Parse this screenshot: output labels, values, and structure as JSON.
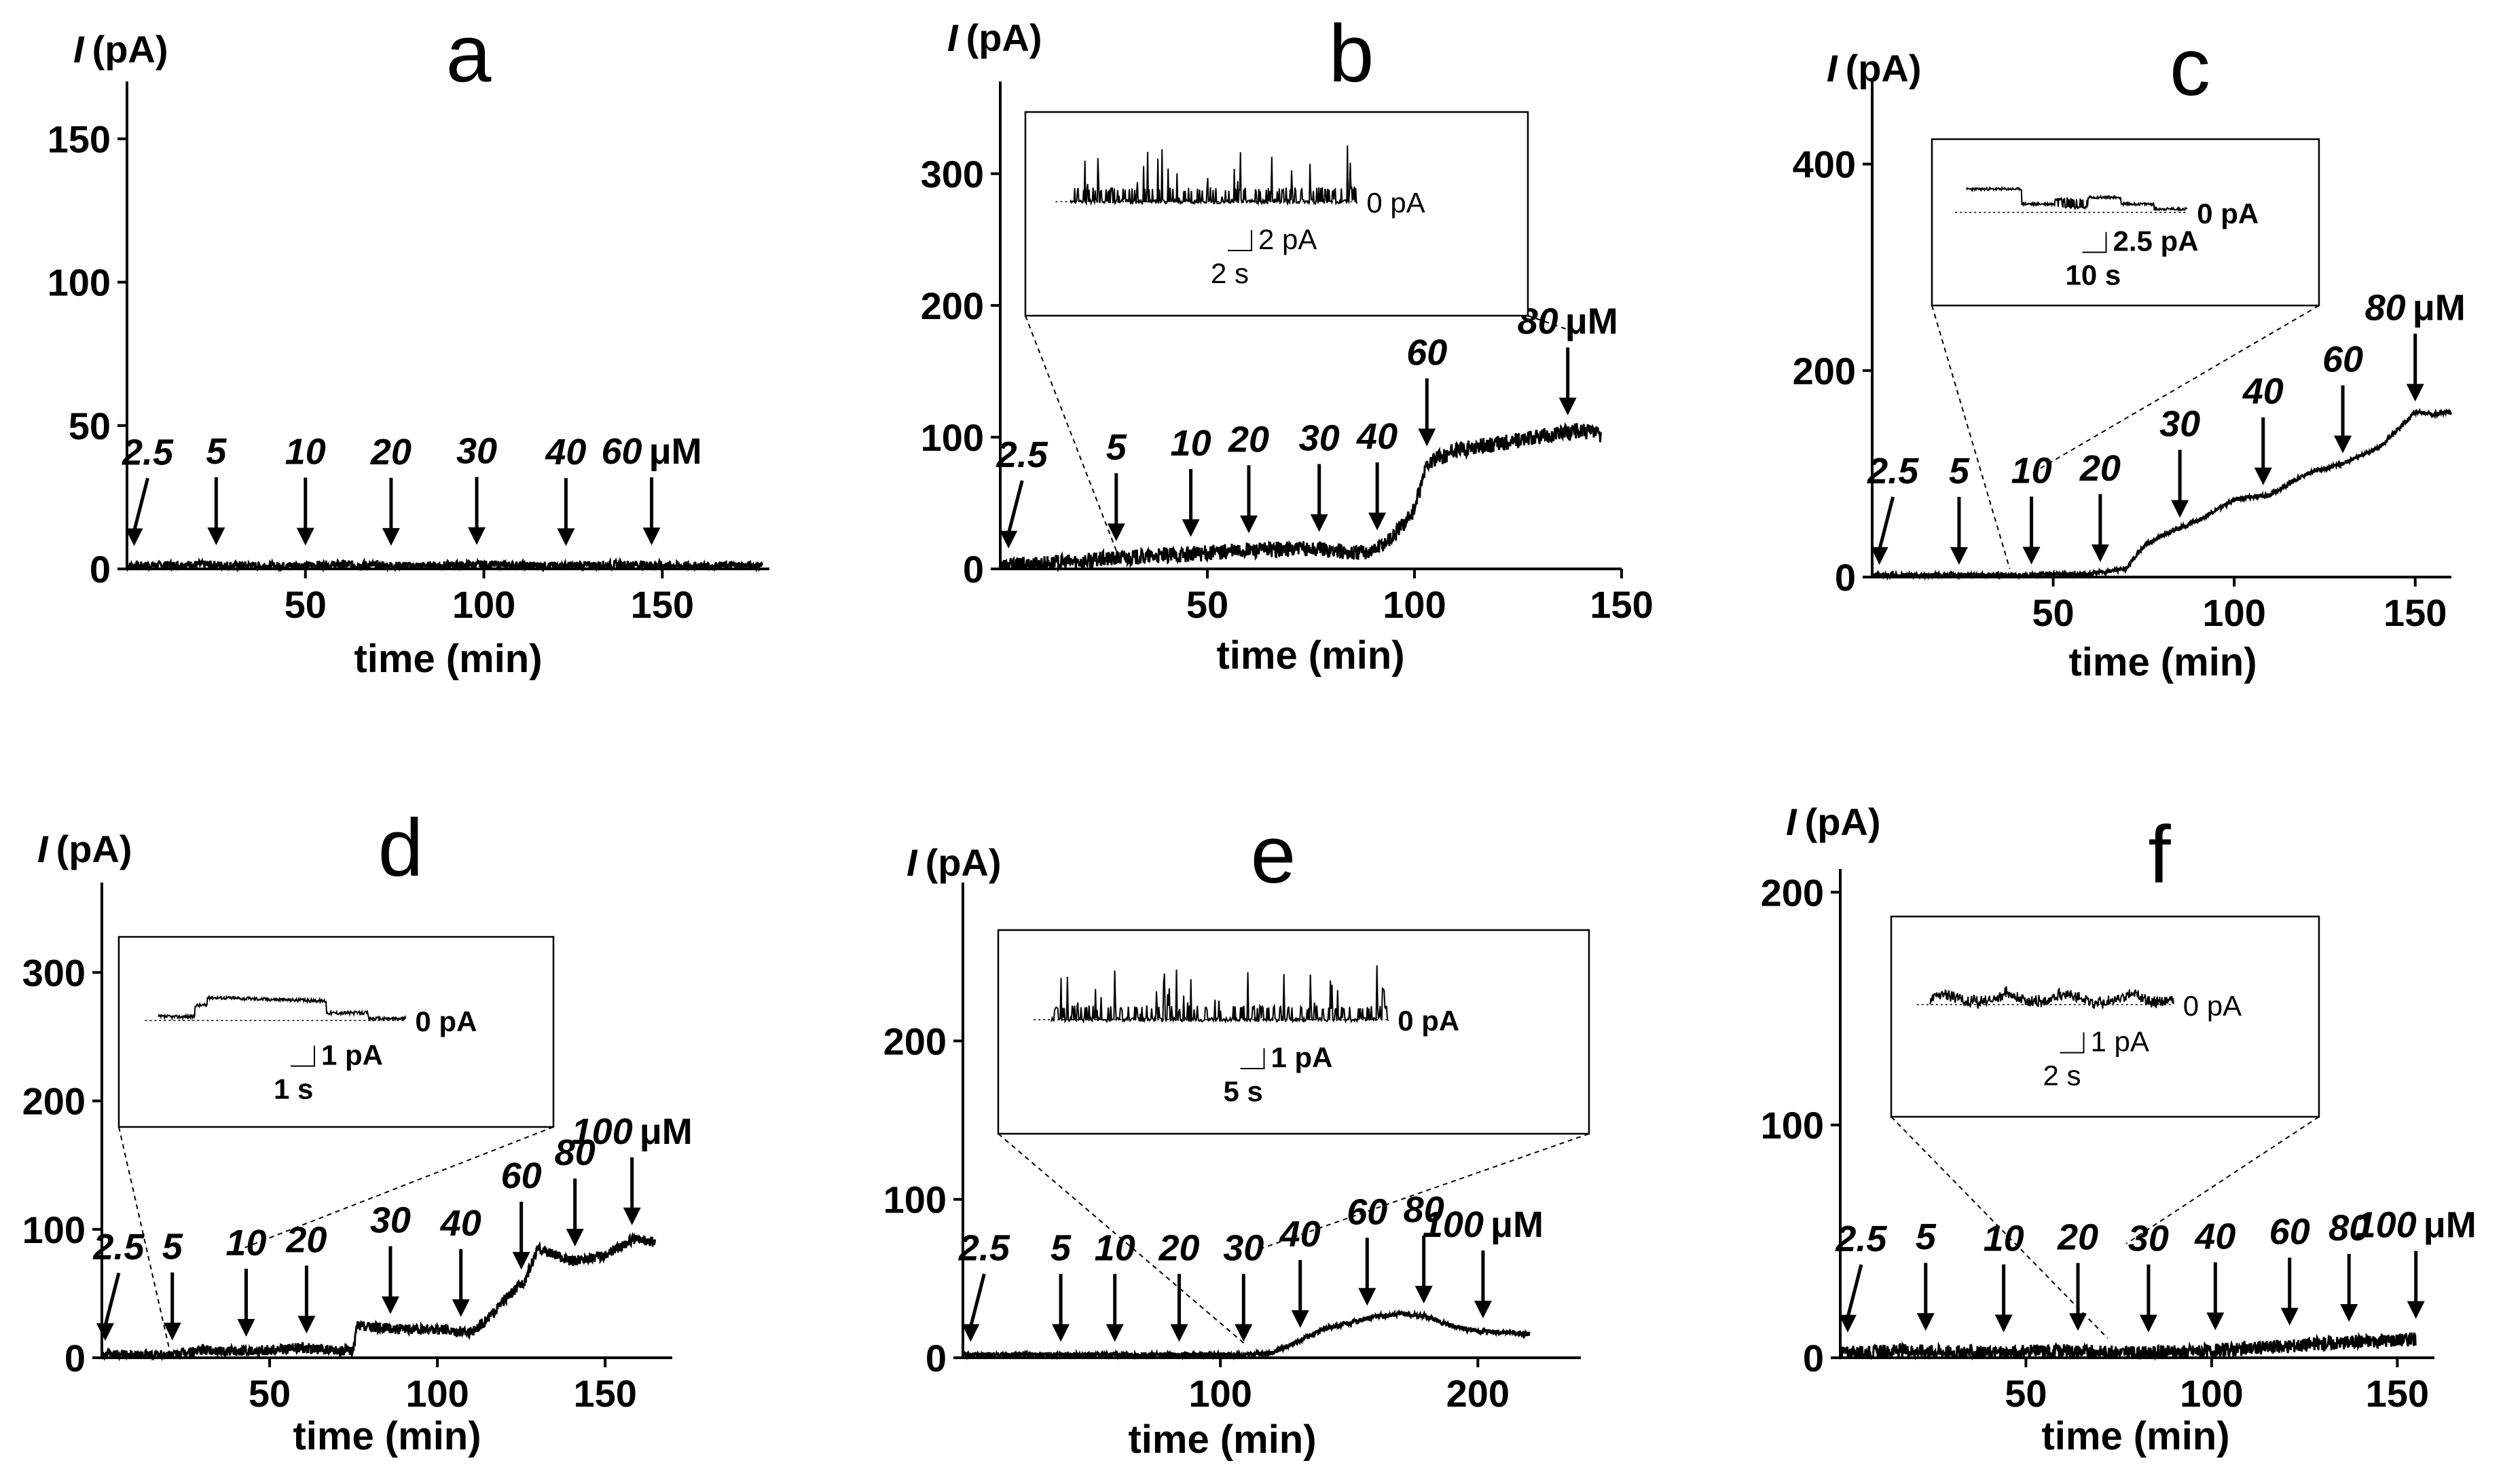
{
  "figure": {
    "description_free": true
  },
  "chart_data": [
    {
      "type": "line",
      "panel": "a",
      "ylabel_symbol": "I",
      "ylabel_unit": "(pA)",
      "xlabel": "time (min)",
      "xlim": [
        0,
        180
      ],
      "ylim": [
        0,
        170
      ],
      "xticks": [
        50,
        100,
        150
      ],
      "yticks": [
        0,
        50,
        100,
        150
      ],
      "series": [
        {
          "name": "current",
          "x": [
            0,
            20,
            40,
            60,
            80,
            100,
            120,
            140,
            160,
            178
          ],
          "y": [
            1,
            1.5,
            1,
            1.5,
            1,
            1.5,
            1,
            1.5,
            1,
            1.2
          ],
          "noise": 1.5
        }
      ],
      "arrows": [
        {
          "x": 2,
          "label": "2.5",
          "unit": ""
        },
        {
          "x": 25,
          "label": "5",
          "unit": ""
        },
        {
          "x": 50,
          "label": "10",
          "unit": ""
        },
        {
          "x": 74,
          "label": "20",
          "unit": ""
        },
        {
          "x": 98,
          "label": "30",
          "unit": ""
        },
        {
          "x": 123,
          "label": "40",
          "unit": ""
        },
        {
          "x": 147,
          "label": "60",
          "unit": "μM"
        }
      ],
      "inset": null
    },
    {
      "type": "line",
      "panel": "b",
      "ylabel_symbol": "I",
      "ylabel_unit": "(pA)",
      "xlabel": "time (min)",
      "xlim": [
        0,
        150
      ],
      "ylim": [
        0,
        370
      ],
      "xticks": [
        50,
        100,
        150
      ],
      "yticks": [
        0,
        100,
        200,
        300
      ],
      "series": [
        {
          "name": "current",
          "x": [
            0,
            10,
            20,
            28,
            40,
            50,
            60,
            70,
            78,
            85,
            90,
            95,
            100,
            103,
            110,
            120,
            130,
            140,
            145
          ],
          "y": [
            2,
            4,
            6,
            8,
            10,
            12,
            14,
            15,
            15,
            12,
            14,
            25,
            45,
            80,
            90,
            95,
            100,
            105,
            102
          ],
          "noise": 6
        }
      ],
      "arrows": [
        {
          "x": 2,
          "label": "2.5",
          "unit": ""
        },
        {
          "x": 28,
          "label": "5",
          "unit": ""
        },
        {
          "x": 46,
          "label": "10",
          "unit": ""
        },
        {
          "x": 60,
          "label": "20",
          "unit": ""
        },
        {
          "x": 77,
          "label": "30",
          "unit": ""
        },
        {
          "x": 91,
          "label": "40",
          "unit": ""
        },
        {
          "x": 103,
          "label": "60",
          "unit": ""
        },
        {
          "x": 137,
          "label": "80",
          "unit": "μM"
        }
      ],
      "inset": {
        "baseline_label": "0 pA",
        "scale_y_label": "2 pA",
        "scale_x_label": "2 s",
        "trace_type": "bursty",
        "seed": 11,
        "zoom_x": [
          28,
          137
        ]
      }
    },
    {
      "type": "line",
      "panel": "c",
      "ylabel_symbol": "I",
      "ylabel_unit": "(pA)",
      "xlabel": "time (min)",
      "xlim": [
        0,
        160
      ],
      "ylim": [
        0,
        480
      ],
      "xticks": [
        50,
        100,
        150
      ],
      "yticks": [
        0,
        200,
        400
      ],
      "series": [
        {
          "name": "current",
          "x": [
            0,
            20,
            40,
            60,
            70,
            75,
            80,
            90,
            100,
            110,
            120,
            130,
            140,
            150,
            155,
            160
          ],
          "y": [
            2,
            2,
            2,
            3,
            8,
            30,
            40,
            55,
            75,
            80,
            100,
            110,
            125,
            160,
            158,
            160
          ],
          "noise": 2
        }
      ],
      "arrows": [
        {
          "x": 2,
          "label": "2.5",
          "unit": ""
        },
        {
          "x": 24,
          "label": "5",
          "unit": ""
        },
        {
          "x": 44,
          "label": "10",
          "unit": ""
        },
        {
          "x": 63,
          "label": "20",
          "unit": ""
        },
        {
          "x": 85,
          "label": "30",
          "unit": ""
        },
        {
          "x": 108,
          "label": "40",
          "unit": ""
        },
        {
          "x": 130,
          "label": "60",
          "unit": ""
        },
        {
          "x": 150,
          "label": "80",
          "unit": "μM"
        }
      ],
      "inset": {
        "baseline_label": "0 pA",
        "scale_y_label": "2.5 pA",
        "scale_x_label": "10 s",
        "trace_type": "step",
        "seed": 23,
        "zoom_x": [
          38,
          44
        ]
      }
    },
    {
      "type": "line",
      "panel": "d",
      "ylabel_symbol": "I",
      "ylabel_unit": "(pA)",
      "xlabel": "time (min)",
      "xlim": [
        0,
        170
      ],
      "ylim": [
        0,
        370
      ],
      "xticks": [
        50,
        100,
        150
      ],
      "yticks": [
        0,
        100,
        200,
        300
      ],
      "series": [
        {
          "name": "current",
          "x": [
            0,
            20,
            30,
            40,
            50,
            60,
            70,
            75,
            76,
            90,
            100,
            110,
            115,
            120,
            126,
            130,
            140,
            150,
            158,
            165
          ],
          "y": [
            2,
            2,
            6,
            5,
            6,
            8,
            5,
            6,
            25,
            22,
            22,
            20,
            30,
            45,
            60,
            85,
            75,
            80,
            92,
            90
          ],
          "noise": 4
        }
      ],
      "arrows": [
        {
          "x": 1,
          "label": "2.5",
          "unit": ""
        },
        {
          "x": 21,
          "label": "5",
          "unit": ""
        },
        {
          "x": 43,
          "label": "10",
          "unit": ""
        },
        {
          "x": 61,
          "label": "20",
          "unit": ""
        },
        {
          "x": 86,
          "label": "30",
          "unit": ""
        },
        {
          "x": 107,
          "label": "40",
          "unit": ""
        },
        {
          "x": 125,
          "label": "60",
          "unit": ""
        },
        {
          "x": 141,
          "label": "80",
          "unit": ""
        },
        {
          "x": 158,
          "label": "100",
          "unit": "μM"
        }
      ],
      "inset": {
        "baseline_label": "0 pA",
        "scale_y_label": "1 pA",
        "scale_x_label": "1 s",
        "trace_type": "single_step",
        "seed": 37,
        "zoom_x": [
          20,
          42
        ]
      }
    },
    {
      "type": "line",
      "panel": "e",
      "ylabel_symbol": "I",
      "ylabel_unit": "(pA)",
      "xlabel": "time (min)",
      "xlim": [
        0,
        240
      ],
      "ylim": [
        0,
        300
      ],
      "xticks": [
        100,
        200
      ],
      "yticks": [
        0,
        100,
        200
      ],
      "series": [
        {
          "name": "current",
          "x": [
            0,
            40,
            80,
            110,
            120,
            130,
            140,
            150,
            160,
            170,
            180,
            190,
            200,
            210,
            220
          ],
          "y": [
            2,
            2,
            2,
            2,
            3,
            10,
            18,
            22,
            26,
            28,
            26,
            20,
            17,
            16,
            15
          ],
          "noise": 1.5
        }
      ],
      "arrows": [
        {
          "x": 3,
          "label": "2.5",
          "unit": ""
        },
        {
          "x": 38,
          "label": "5",
          "unit": ""
        },
        {
          "x": 59,
          "label": "10",
          "unit": ""
        },
        {
          "x": 84,
          "label": "20",
          "unit": ""
        },
        {
          "x": 109,
          "label": "30",
          "unit": ""
        },
        {
          "x": 131,
          "label": "40",
          "unit": ""
        },
        {
          "x": 157,
          "label": "60",
          "unit": ""
        },
        {
          "x": 179,
          "label": "80",
          "unit": ""
        },
        {
          "x": 202,
          "label": "100",
          "unit": "μM"
        }
      ],
      "inset": {
        "baseline_label": "0 pA",
        "scale_y_label": "1 pA",
        "scale_x_label": "5 s",
        "trace_type": "bursty",
        "seed": 53,
        "zoom_x": [
          110,
          115
        ]
      }
    },
    {
      "type": "line",
      "panel": "f",
      "ylabel_symbol": "I",
      "ylabel_unit": "(pA)",
      "xlabel": "time (min)",
      "xlim": [
        0,
        160
      ],
      "ylim": [
        0,
        210
      ],
      "xticks": [
        50,
        100,
        150
      ],
      "yticks": [
        0,
        100,
        200
      ],
      "series": [
        {
          "name": "current",
          "x": [
            0,
            20,
            40,
            60,
            80,
            100,
            120,
            140,
            155
          ],
          "y": [
            2,
            3,
            2,
            3,
            2,
            3,
            5,
            7,
            8
          ],
          "noise": 3
        }
      ],
      "arrows": [
        {
          "x": 2,
          "label": "2.5",
          "unit": ""
        },
        {
          "x": 23,
          "label": "5",
          "unit": ""
        },
        {
          "x": 44,
          "label": "10",
          "unit": ""
        },
        {
          "x": 64,
          "label": "20",
          "unit": ""
        },
        {
          "x": 83,
          "label": "30",
          "unit": ""
        },
        {
          "x": 101,
          "label": "40",
          "unit": ""
        },
        {
          "x": 121,
          "label": "60",
          "unit": ""
        },
        {
          "x": 137,
          "label": "80",
          "unit": ""
        },
        {
          "x": 155,
          "label": "100",
          "unit": "μM"
        }
      ],
      "inset": {
        "baseline_label": "0 pA",
        "scale_y_label": "1 pA",
        "scale_x_label": "2 s",
        "trace_type": "flicker",
        "seed": 71,
        "zoom_x": [
          72,
          77
        ]
      }
    }
  ]
}
